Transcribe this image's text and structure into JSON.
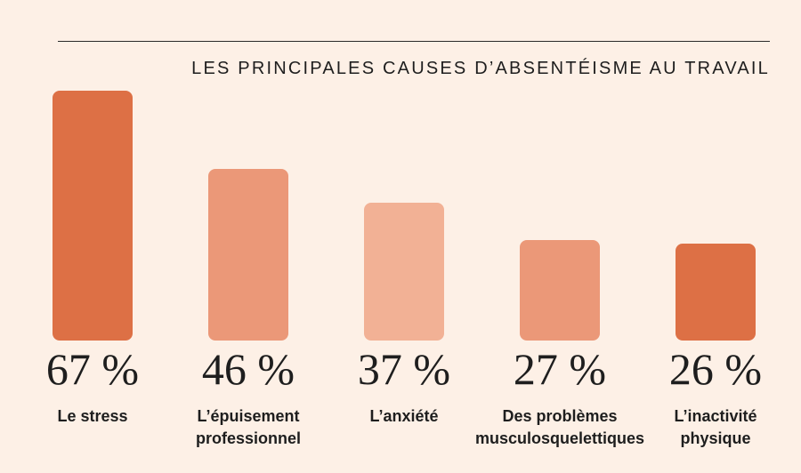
{
  "chart_data": {
    "type": "bar",
    "title": "LES PRINCIPALES CAUSES D’ABSENTÉISME AU TRAVAIL",
    "categories": [
      [
        "Le stress"
      ],
      [
        "L’épuisement",
        "professionnel"
      ],
      [
        "L’anxiété"
      ],
      [
        "Des problèmes",
        "musculosquelettiques"
      ],
      [
        "L’inactivité",
        "physique"
      ]
    ],
    "values": [
      67,
      46,
      37,
      27,
      26
    ],
    "value_labels": [
      "67 %",
      "46 %",
      "37 %",
      "27 %",
      "26 %"
    ],
    "bar_colors": [
      "#dd7045",
      "#eb9878",
      "#f2b195",
      "#eb9878",
      "#dd7045"
    ],
    "unit": "%",
    "ylim": [
      0,
      67
    ],
    "grid": false,
    "legend": "none"
  }
}
